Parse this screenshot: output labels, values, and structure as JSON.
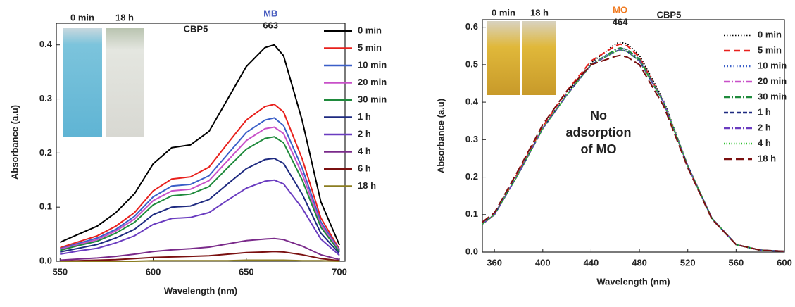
{
  "chart_data": [
    {
      "type": "line",
      "title": "CBP5",
      "peak_label": "MB",
      "peak_wavelength": 663,
      "inset_labels": [
        "0 min",
        "18 h"
      ],
      "x_label": "Wavelength (nm)",
      "y_label": "Absorbance (a.u)",
      "xlim": [
        548,
        703
      ],
      "ylim": [
        0,
        0.44
      ],
      "xticks": [
        550,
        600,
        650,
        700
      ],
      "yticks": [
        {
          "value": 0,
          "label": "0.0"
        },
        0.1,
        0.2,
        0.3,
        0.4
      ],
      "x": [
        550,
        560,
        570,
        580,
        590,
        600,
        610,
        620,
        630,
        640,
        650,
        660,
        665,
        670,
        680,
        690,
        700
      ],
      "series": [
        {
          "name": "0 min",
          "color": "#000000",
          "values": [
            0.035,
            0.05,
            0.065,
            0.09,
            0.125,
            0.18,
            0.21,
            0.215,
            0.24,
            0.3,
            0.36,
            0.395,
            0.4,
            0.38,
            0.26,
            0.11,
            0.03
          ]
        },
        {
          "name": "5 min",
          "color": "#e8201c",
          "values": [
            0.025,
            0.036,
            0.047,
            0.065,
            0.09,
            0.13,
            0.152,
            0.156,
            0.174,
            0.218,
            0.261,
            0.286,
            0.29,
            0.276,
            0.189,
            0.08,
            0.022
          ]
        },
        {
          "name": "10 min",
          "color": "#3a5fc8",
          "values": [
            0.023,
            0.033,
            0.043,
            0.059,
            0.083,
            0.119,
            0.139,
            0.142,
            0.158,
            0.198,
            0.238,
            0.261,
            0.265,
            0.251,
            0.172,
            0.073,
            0.02
          ]
        },
        {
          "name": "20 min",
          "color": "#c850c8",
          "values": [
            0.022,
            0.031,
            0.04,
            0.056,
            0.078,
            0.112,
            0.13,
            0.133,
            0.149,
            0.186,
            0.223,
            0.245,
            0.248,
            0.236,
            0.161,
            0.068,
            0.019
          ]
        },
        {
          "name": "30 min",
          "color": "#1f8a3c",
          "values": [
            0.02,
            0.029,
            0.037,
            0.052,
            0.072,
            0.104,
            0.121,
            0.124,
            0.138,
            0.173,
            0.207,
            0.227,
            0.23,
            0.219,
            0.15,
            0.063,
            0.017
          ]
        },
        {
          "name": "1 h",
          "color": "#1e2a80",
          "values": [
            0.017,
            0.024,
            0.031,
            0.043,
            0.059,
            0.086,
            0.1,
            0.102,
            0.114,
            0.143,
            0.171,
            0.188,
            0.19,
            0.181,
            0.124,
            0.052,
            0.014
          ]
        },
        {
          "name": "2 h",
          "color": "#6a3cc0",
          "values": [
            0.013,
            0.019,
            0.024,
            0.034,
            0.047,
            0.068,
            0.079,
            0.081,
            0.09,
            0.113,
            0.135,
            0.148,
            0.15,
            0.143,
            0.098,
            0.041,
            0.011
          ]
        },
        {
          "name": "4 h",
          "color": "#7a2a8a",
          "values": [
            0.002,
            0.004,
            0.006,
            0.009,
            0.013,
            0.018,
            0.021,
            0.023,
            0.026,
            0.032,
            0.038,
            0.041,
            0.042,
            0.04,
            0.028,
            0.012,
            0.003
          ]
        },
        {
          "name": "6 h",
          "color": "#7a1010",
          "values": [
            0,
            0.001,
            0.002,
            0.003,
            0.005,
            0.007,
            0.008,
            0.009,
            0.01,
            0.013,
            0.016,
            0.017,
            0.018,
            0.017,
            0.012,
            0.005,
            0.001
          ]
        },
        {
          "name": "18 h",
          "color": "#8b7d20",
          "values": [
            0,
            0,
            0,
            0,
            0,
            0.001,
            0.001,
            0.001,
            0.001,
            0.001,
            0.002,
            0.002,
            0.002,
            0.002,
            0.001,
            0.001,
            0
          ]
        }
      ]
    },
    {
      "type": "line",
      "title": "CBP5",
      "peak_label": "MO",
      "peak_wavelength": 464,
      "inset_labels": [
        "0 min",
        "18 h"
      ],
      "note": [
        "No",
        "adsorption",
        "of MO"
      ],
      "x_label": "Wavelength (nm)",
      "y_label": "Absorbance (a.u)",
      "xlim": [
        350,
        600
      ],
      "ylim": [
        0,
        0.62
      ],
      "xticks": [
        360,
        400,
        440,
        480,
        520,
        560,
        600
      ],
      "yticks": [
        {
          "value": 0,
          "label": "0.0"
        },
        0.1,
        0.2,
        0.3,
        0.4,
        0.5,
        0.6
      ],
      "x": [
        350,
        360,
        380,
        400,
        420,
        440,
        460,
        464,
        470,
        480,
        500,
        520,
        540,
        560,
        580,
        600
      ],
      "series": [
        {
          "name": "0 min",
          "color": "#000000",
          "dash": "1.5,2.5",
          "values": [
            0.075,
            0.1,
            0.21,
            0.33,
            0.425,
            0.505,
            0.555,
            0.56,
            0.555,
            0.525,
            0.405,
            0.23,
            0.09,
            0.02,
            0.005,
            0.002
          ]
        },
        {
          "name": "5 min",
          "color": "#e8201c",
          "dash": "9,5",
          "values": [
            0.075,
            0.1,
            0.215,
            0.335,
            0.43,
            0.51,
            0.55,
            0.555,
            0.55,
            0.52,
            0.4,
            0.23,
            0.09,
            0.02,
            0.005,
            0.002
          ]
        },
        {
          "name": "10 min",
          "color": "#3a5fc8",
          "dash": "1.5,3",
          "values": [
            0.075,
            0.1,
            0.21,
            0.33,
            0.42,
            0.5,
            0.54,
            0.545,
            0.54,
            0.515,
            0.4,
            0.23,
            0.09,
            0.02,
            0.005,
            0.002
          ]
        },
        {
          "name": "20 min",
          "color": "#c850c8",
          "dash": "8,3,2,3",
          "values": [
            0.075,
            0.1,
            0.21,
            0.33,
            0.42,
            0.5,
            0.54,
            0.545,
            0.54,
            0.515,
            0.4,
            0.23,
            0.09,
            0.02,
            0.005,
            0.002
          ]
        },
        {
          "name": "30 min",
          "color": "#1f8a3c",
          "dash": "8,3,2,3",
          "values": [
            0.075,
            0.1,
            0.21,
            0.33,
            0.42,
            0.5,
            0.54,
            0.545,
            0.54,
            0.515,
            0.4,
            0.23,
            0.09,
            0.02,
            0.005,
            0.002
          ]
        },
        {
          "name": "1 h",
          "color": "#1e2a80",
          "dash": "6,3",
          "values": [
            0.075,
            0.1,
            0.21,
            0.33,
            0.42,
            0.5,
            0.535,
            0.54,
            0.535,
            0.51,
            0.4,
            0.23,
            0.09,
            0.02,
            0.005,
            0.002
          ]
        },
        {
          "name": "2 h",
          "color": "#6a3cc0",
          "dash": "8,3,2,3",
          "values": [
            0.075,
            0.1,
            0.21,
            0.33,
            0.42,
            0.5,
            0.535,
            0.54,
            0.535,
            0.51,
            0.4,
            0.23,
            0.09,
            0.02,
            0.005,
            0.002
          ]
        },
        {
          "name": "4 h",
          "color": "#30c030",
          "dash": "1.5,2",
          "values": [
            0.075,
            0.1,
            0.21,
            0.33,
            0.42,
            0.5,
            0.535,
            0.54,
            0.535,
            0.51,
            0.4,
            0.23,
            0.09,
            0.02,
            0.005,
            0.002
          ]
        },
        {
          "name": "18 h",
          "color": "#7a1010",
          "dash": "12,5",
          "values": [
            0.08,
            0.105,
            0.22,
            0.34,
            0.43,
            0.5,
            0.522,
            0.525,
            0.52,
            0.5,
            0.39,
            0.225,
            0.088,
            0.02,
            0.005,
            0.002
          ]
        }
      ]
    }
  ]
}
